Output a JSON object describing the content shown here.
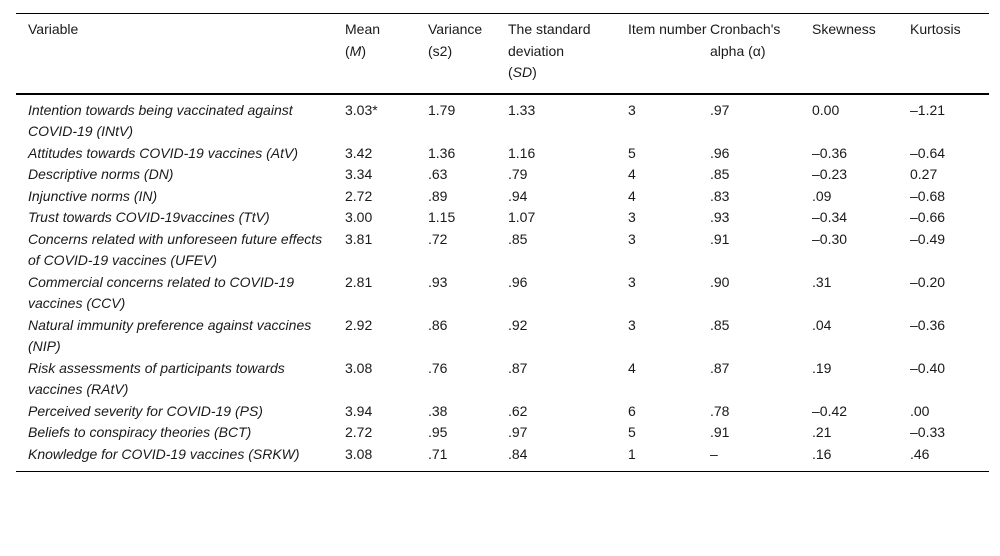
{
  "table": {
    "header": {
      "variable": "Variable",
      "mean": {
        "line1": "Mean",
        "pre": "(",
        "sym": "M",
        "post": ")"
      },
      "variance": {
        "line1": "Variance",
        "pre": "(s2)",
        "sym": "",
        "post": ""
      },
      "sd": {
        "line1": "The standard deviation",
        "pre": "(",
        "sym": "SD",
        "post": ")"
      },
      "item_number": "Item number",
      "cronbach_alpha": "Cronbach's alpha (α)",
      "skewness": "Skewness",
      "kurtosis": "Kurtosis"
    },
    "rows": [
      {
        "variable": "Intention towards being vaccinated against COVID-19 (INtV)",
        "mean": "3.03*",
        "variance": "1.79",
        "sd": "1.33",
        "item_number": "3",
        "cronbach_alpha": ".97",
        "skewness": "0.00",
        "kurtosis": "–1.21"
      },
      {
        "variable": "Attitudes towards COVID-19 vaccines (AtV)",
        "mean": "3.42",
        "variance": "1.36",
        "sd": "1.16",
        "item_number": "5",
        "cronbach_alpha": ".96",
        "skewness": "–0.36",
        "kurtosis": "–0.64"
      },
      {
        "variable": "Descriptive norms (DN)",
        "mean": "3.34",
        "variance": ".63",
        "sd": ".79",
        "item_number": "4",
        "cronbach_alpha": ".85",
        "skewness": "–0.23",
        "kurtosis": "0.27"
      },
      {
        "variable": "Injunctive norms (IN)",
        "mean": "2.72",
        "variance": ".89",
        "sd": ".94",
        "item_number": "4",
        "cronbach_alpha": ".83",
        "skewness": ".09",
        "kurtosis": "–0.68"
      },
      {
        "variable": "Trust towards COVID-19vaccines (TtV)",
        "mean": "3.00",
        "variance": "1.15",
        "sd": "1.07",
        "item_number": "3",
        "cronbach_alpha": ".93",
        "skewness": "–0.34",
        "kurtosis": "–0.66"
      },
      {
        "variable": "Concerns related with unforeseen future effects of COVID-19 vaccines (UFEV)",
        "mean": "3.81",
        "variance": ".72",
        "sd": ".85",
        "item_number": "3",
        "cronbach_alpha": ".91",
        "skewness": "–0.30",
        "kurtosis": "–0.49"
      },
      {
        "variable": "Commercial concerns related to COVID-19 vaccines (CCV)",
        "mean": "2.81",
        "variance": ".93",
        "sd": ".96",
        "item_number": "3",
        "cronbach_alpha": ".90",
        "skewness": ".31",
        "kurtosis": "–0.20"
      },
      {
        "variable": "Natural immunity preference against vaccines (NIP)",
        "mean": "2.92",
        "variance": ".86",
        "sd": ".92",
        "item_number": "3",
        "cronbach_alpha": ".85",
        "skewness": ".04",
        "kurtosis": "–0.36"
      },
      {
        "variable": "Risk assessments of participants towards vaccines (RAtV)",
        "mean": "3.08",
        "variance": ".76",
        "sd": ".87",
        "item_number": "4",
        "cronbach_alpha": ".87",
        "skewness": ".19",
        "kurtosis": "–0.40"
      },
      {
        "variable": "Perceived severity for COVID-19 (PS)",
        "mean": "3.94",
        "variance": ".38",
        "sd": ".62",
        "item_number": "6",
        "cronbach_alpha": ".78",
        "skewness": "–0.42",
        "kurtosis": ".00"
      },
      {
        "variable": "Beliefs to conspiracy theories (BCT)",
        "mean": "2.72",
        "variance": ".95",
        "sd": ".97",
        "item_number": "5",
        "cronbach_alpha": ".91",
        "skewness": ".21",
        "kurtosis": "–0.33"
      },
      {
        "variable": "Knowledge for COVID-19 vaccines (SRKW)",
        "mean": "3.08",
        "variance": ".71",
        "sd": ".84",
        "item_number": "1",
        "cronbach_alpha": "–",
        "skewness": ".16",
        "kurtosis": ".46"
      }
    ]
  }
}
